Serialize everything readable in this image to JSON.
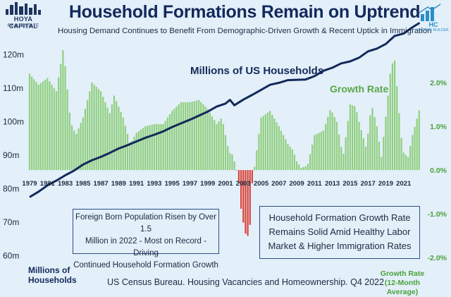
{
  "header": {
    "title": "Household Formations Remain on Uptrend",
    "subtitle": "Housing Demand Continues to Benefit From Demographic-Driven Growth & Recent Uptick in Immigration"
  },
  "logos": {
    "left_name": "HOYA CAPITAL",
    "left_sub": "REAL ESTATE",
    "right_text": "HC",
    "right_sub": "INCOME BUILDER"
  },
  "annotations": {
    "series_households": "Millions of US Households",
    "series_growth": "Growth Rate",
    "box_left": [
      "Foreign Born Population Risen by Over 1.5",
      "Million in 2022 - Most on Record - Driving",
      "Continued Household Formation Growth"
    ],
    "box_right": [
      "Household Formation Growth Rate",
      "Remains Solid Amid Healthy Labor",
      "Market & Higher Immigration Rates"
    ],
    "ylabel_left": [
      "Millions of",
      "Households"
    ],
    "ylabel_right": [
      "Growth Rate",
      "(12-Month Average)"
    ],
    "source": "US Census Bureau. Housing Vacancies and Homeownership. Q4 2022"
  },
  "colors": {
    "households_line": "#13295a",
    "growth_positive": "#8fcf7e",
    "growth_negative": "#d8433a",
    "background": "#e3eff9"
  },
  "chart_data": {
    "type": "bar+line",
    "x_ticks": [
      "1979",
      "1981",
      "1983",
      "1985",
      "1987",
      "1989",
      "1991",
      "1993",
      "1995",
      "1997",
      "1999",
      "2001",
      "2003",
      "2005",
      "2007",
      "2009",
      "2011",
      "2013",
      "2015",
      "2017",
      "2019",
      "2021"
    ],
    "xlim": [
      1979,
      2023
    ],
    "y_left": {
      "ticks": [
        "60m",
        "70m",
        "80m",
        "90m",
        "100m",
        "110m",
        "120m"
      ],
      "values": [
        60,
        70,
        80,
        90,
        100,
        110,
        120
      ],
      "ylim": [
        58,
        130
      ]
    },
    "y_right": {
      "ticks": [
        "-2.0%",
        "-1.0%",
        "0.0%",
        "1.0%",
        "2.0%"
      ],
      "values": [
        -2,
        -1,
        0,
        1,
        2
      ],
      "ylim": [
        -1.9,
        2.95
      ]
    },
    "series": [
      {
        "name": "Millions of US Households",
        "axis": "left",
        "type": "line",
        "x": [
          1979.0,
          1980.0,
          1981.0,
          1982.0,
          1983.0,
          1984.0,
          1985.0,
          1986.0,
          1987.0,
          1988.0,
          1989.0,
          1990.0,
          1991.0,
          1992.0,
          1993.0,
          1994.0,
          1995.0,
          1996.0,
          1997.0,
          1998.0,
          1999.0,
          2000.0,
          2001.0,
          2001.5,
          2002.0,
          2003.0,
          2004.0,
          2005.0,
          2006.0,
          2007.0,
          2008.0,
          2009.0,
          2010.0,
          2011.0,
          2012.0,
          2013.0,
          2014.0,
          2015.0,
          2016.0,
          2017.0,
          2018.0,
          2019.0,
          2020.0,
          2021.0,
          2022.0,
          2022.8
        ],
        "y": [
          77.5,
          79.1,
          81.0,
          82.4,
          84.0,
          85.4,
          87.2,
          88.5,
          89.5,
          90.7,
          92.0,
          93.0,
          94.1,
          95.2,
          96.1,
          97.1,
          98.4,
          99.5,
          100.6,
          101.8,
          103.0,
          104.5,
          105.4,
          106.5,
          104.9,
          106.6,
          108.0,
          109.5,
          111.0,
          111.6,
          112.4,
          112.5,
          112.6,
          113.6,
          115.2,
          116.1,
          117.4,
          118.0,
          119.1,
          121.0,
          121.8,
          123.2,
          125.6,
          126.3,
          128.2,
          129.5
        ]
      },
      {
        "name": "Growth Rate",
        "axis": "right",
        "type": "bar",
        "x": [
          1979.0,
          1980.0,
          1981.0,
          1982.0,
          1982.8,
          1983.6,
          1984.2,
          1985.0,
          1986.0,
          1987.0,
          1988.0,
          1988.5,
          1989.5,
          1990.3,
          1991.0,
          1992.0,
          1993.0,
          1994.0,
          1995.0,
          1996.0,
          1997.0,
          1998.0,
          1999.0,
          2000.0,
          2000.6,
          2001.4,
          2001.8,
          2002.2,
          2002.5,
          2002.8,
          2003.1,
          2003.4,
          2003.8,
          2004.0,
          2005.0,
          2006.0,
          2007.0,
          2008.0,
          2008.6,
          2009.0,
          2009.5,
          2010.2,
          2011.0,
          2012.0,
          2012.8,
          2013.5,
          2014.2,
          2015.0,
          2015.6,
          2016.0,
          2016.8,
          2017.4,
          2018.0,
          2018.5,
          2019.1,
          2019.6,
          2020.0,
          2020.3,
          2020.7,
          2021.0,
          2021.5,
          2022.0,
          2022.8
        ],
        "y": [
          2.2,
          1.95,
          2.1,
          1.8,
          2.8,
          1.1,
          0.8,
          1.2,
          2.0,
          1.8,
          1.3,
          1.7,
          1.2,
          0.6,
          0.85,
          1.0,
          1.05,
          1.05,
          1.35,
          1.55,
          1.55,
          1.6,
          1.4,
          1.05,
          1.2,
          0.4,
          0.35,
          0.05,
          -0.3,
          -1.0,
          -1.3,
          -1.6,
          -1.2,
          -0.3,
          1.2,
          1.35,
          1.0,
          0.6,
          0.45,
          0.2,
          0.05,
          0.1,
          0.8,
          0.9,
          1.4,
          1.1,
          0.3,
          1.5,
          1.45,
          1.1,
          0.5,
          1.5,
          1.0,
          0.3,
          1.4,
          2.4,
          2.5,
          1.8,
          0.8,
          0.4,
          0.3,
          0.8,
          1.4
        ]
      }
    ]
  }
}
